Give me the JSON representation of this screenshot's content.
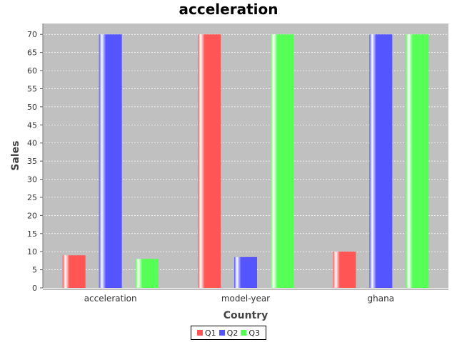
{
  "chart_data": {
    "type": "bar",
    "title": "acceleration",
    "xlabel": "Country",
    "ylabel": "Sales",
    "categories": [
      "acceleration",
      "model-year",
      "ghana"
    ],
    "series": [
      {
        "name": "Q1",
        "values": [
          9,
          70,
          10
        ],
        "color": "#ff5555"
      },
      {
        "name": "Q2",
        "values": [
          70,
          8.5,
          70
        ],
        "color": "#5555ff"
      },
      {
        "name": "Q3",
        "values": [
          8,
          70,
          70
        ],
        "color": "#55ff55"
      }
    ],
    "ylim": [
      0,
      73
    ],
    "yticks": [
      0,
      5,
      10,
      15,
      20,
      25,
      30,
      35,
      40,
      45,
      50,
      55,
      60,
      65,
      70
    ],
    "grid": true,
    "legend_position": "bottom",
    "background": "#c0c0c0"
  }
}
